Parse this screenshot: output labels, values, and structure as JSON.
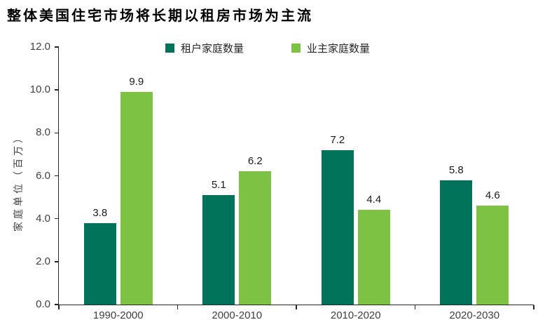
{
  "title": "整体美国住宅市场将长期以租房市场为主流",
  "chart_data": {
    "type": "bar",
    "title": "整体美国住宅市场将长期以租房市场为主流",
    "categories": [
      "1990-2000",
      "2000-2010",
      "2010-2020",
      "2020-2030"
    ],
    "series": [
      {
        "key": "renter",
        "name": "租户家庭数量",
        "color": "#00735A",
        "values": [
          3.8,
          5.1,
          7.2,
          5.8
        ]
      },
      {
        "key": "owner",
        "name": "业主家庭数量",
        "color": "#7DC242",
        "values": [
          9.9,
          6.2,
          4.4,
          4.6
        ]
      }
    ],
    "ylabel": "家庭单位（百万）",
    "xlabel": "",
    "ylim": [
      0,
      12
    ],
    "ytick_step": 2,
    "ytick_labels": [
      "0.0",
      "2.0",
      "4.0",
      "6.0",
      "8.0",
      "10.0",
      "12.0"
    ],
    "grid": false,
    "legend_position": "top",
    "value_labels": true
  },
  "colors": {
    "renter_green": "#00735A",
    "owner_green": "#7DC242",
    "axis_line": "#262626",
    "axis_text": "#404040",
    "value_label_text": "#1A1A1A",
    "title_text": "#000000",
    "background": "#FFFFFF"
  }
}
